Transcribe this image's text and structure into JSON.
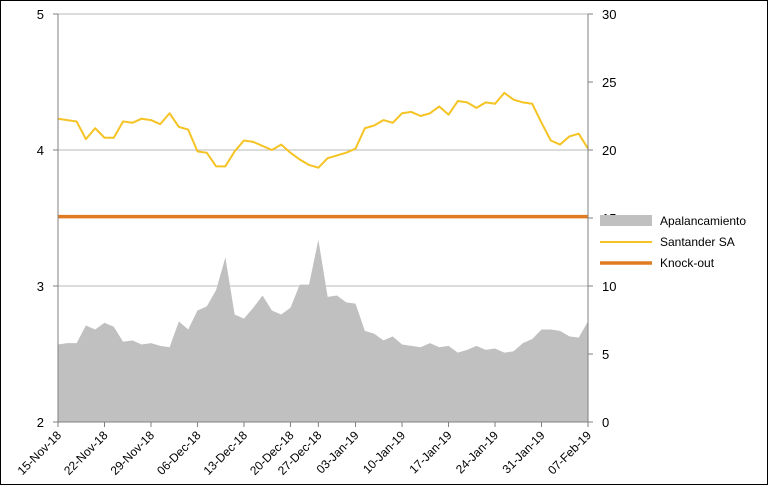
{
  "chart_data": {
    "type": "line",
    "x": [
      "15-Nov-18",
      "16-Nov-18",
      "19-Nov-18",
      "20-Nov-18",
      "21-Nov-18",
      "22-Nov-18",
      "23-Nov-18",
      "26-Nov-18",
      "27-Nov-18",
      "28-Nov-18",
      "29-Nov-18",
      "30-Nov-18",
      "03-Dec-18",
      "04-Dec-18",
      "05-Dec-18",
      "06-Dec-18",
      "07-Dec-18",
      "10-Dec-18",
      "11-Dec-18",
      "12-Dec-18",
      "13-Dec-18",
      "14-Dec-18",
      "17-Dec-18",
      "18-Dec-18",
      "19-Dec-18",
      "20-Dec-18",
      "21-Dec-18",
      "24-Dec-18",
      "27-Dec-18",
      "28-Dec-18",
      "31-Dec-18",
      "02-Jan-19",
      "03-Jan-19",
      "04-Jan-19",
      "07-Jan-19",
      "08-Jan-19",
      "09-Jan-19",
      "10-Jan-19",
      "11-Jan-19",
      "14-Jan-19",
      "15-Jan-19",
      "16-Jan-19",
      "17-Jan-19",
      "18-Jan-19",
      "21-Jan-19",
      "22-Jan-19",
      "23-Jan-19",
      "24-Jan-19",
      "25-Jan-19",
      "28-Jan-19",
      "29-Jan-19",
      "30-Jan-19",
      "31-Jan-19",
      "01-Feb-19",
      "04-Feb-19",
      "05-Feb-19",
      "06-Feb-19",
      "07-Feb-19"
    ],
    "x_ticks": [
      "15-Nov-18",
      "22-Nov-18",
      "29-Nov-18",
      "06-Dec-18",
      "13-Dec-18",
      "20-Dec-18",
      "27-Dec-18",
      "03-Jan-19",
      "10-Jan-19",
      "17-Jan-19",
      "24-Jan-19",
      "31-Jan-19",
      "07-Feb-19"
    ],
    "y_left_ticks": [
      "2",
      "3",
      "4",
      "5"
    ],
    "y_right_ticks": [
      "0",
      "5",
      "10",
      "15",
      "20",
      "25",
      "30"
    ],
    "ylim_left": [
      2,
      5
    ],
    "ylim_right": [
      0,
      30
    ],
    "grid": "horizontal",
    "legend_position": "right-center",
    "series": [
      {
        "name": "Apalancamiento",
        "kind": "area",
        "axis": "left",
        "color": "#c0c0c0",
        "values": [
          2.57,
          2.58,
          2.58,
          2.71,
          2.68,
          2.73,
          2.7,
          2.59,
          2.6,
          2.57,
          2.58,
          2.56,
          2.55,
          2.74,
          2.68,
          2.82,
          2.85,
          2.97,
          3.21,
          2.79,
          2.76,
          2.84,
          2.93,
          2.82,
          2.79,
          2.84,
          3.01,
          3.01,
          3.34,
          2.92,
          2.93,
          2.88,
          2.87,
          2.67,
          2.65,
          2.6,
          2.63,
          2.57,
          2.56,
          2.55,
          2.58,
          2.55,
          2.56,
          2.51,
          2.53,
          2.56,
          2.53,
          2.54,
          2.51,
          2.52,
          2.58,
          2.61,
          2.68,
          2.68,
          2.67,
          2.63,
          2.62,
          2.74
        ]
      },
      {
        "name": "Santander SA",
        "kind": "line",
        "axis": "left",
        "color": "#f5c324",
        "values": [
          4.23,
          4.22,
          4.21,
          4.08,
          4.16,
          4.09,
          4.09,
          4.21,
          4.2,
          4.23,
          4.22,
          4.19,
          4.27,
          4.17,
          4.15,
          3.99,
          3.98,
          3.88,
          3.88,
          3.99,
          4.07,
          4.06,
          4.03,
          4.0,
          4.04,
          3.98,
          3.93,
          3.89,
          3.87,
          3.94,
          3.96,
          3.98,
          4.01,
          4.16,
          4.18,
          4.22,
          4.2,
          4.27,
          4.28,
          4.25,
          4.27,
          4.32,
          4.26,
          4.36,
          4.35,
          4.31,
          4.35,
          4.34,
          4.42,
          4.37,
          4.35,
          4.34,
          4.2,
          4.07,
          4.04,
          4.1,
          4.12,
          4.01
        ]
      },
      {
        "name": "Knock-out",
        "kind": "line",
        "axis": "left",
        "color": "#e07b21",
        "values": [
          3.51,
          3.51,
          3.51,
          3.51,
          3.51,
          3.51,
          3.51,
          3.51,
          3.51,
          3.51,
          3.51,
          3.51,
          3.51,
          3.51,
          3.51,
          3.51,
          3.51,
          3.51,
          3.51,
          3.51,
          3.51,
          3.51,
          3.51,
          3.51,
          3.51,
          3.51,
          3.51,
          3.51,
          3.51,
          3.51,
          3.51,
          3.51,
          3.51,
          3.51,
          3.51,
          3.51,
          3.51,
          3.51,
          3.51,
          3.51,
          3.51,
          3.51,
          3.51,
          3.51,
          3.51,
          3.51,
          3.51,
          3.51,
          3.51,
          3.51,
          3.51,
          3.51,
          3.51,
          3.51,
          3.51,
          3.51,
          3.51,
          3.51
        ]
      }
    ]
  }
}
